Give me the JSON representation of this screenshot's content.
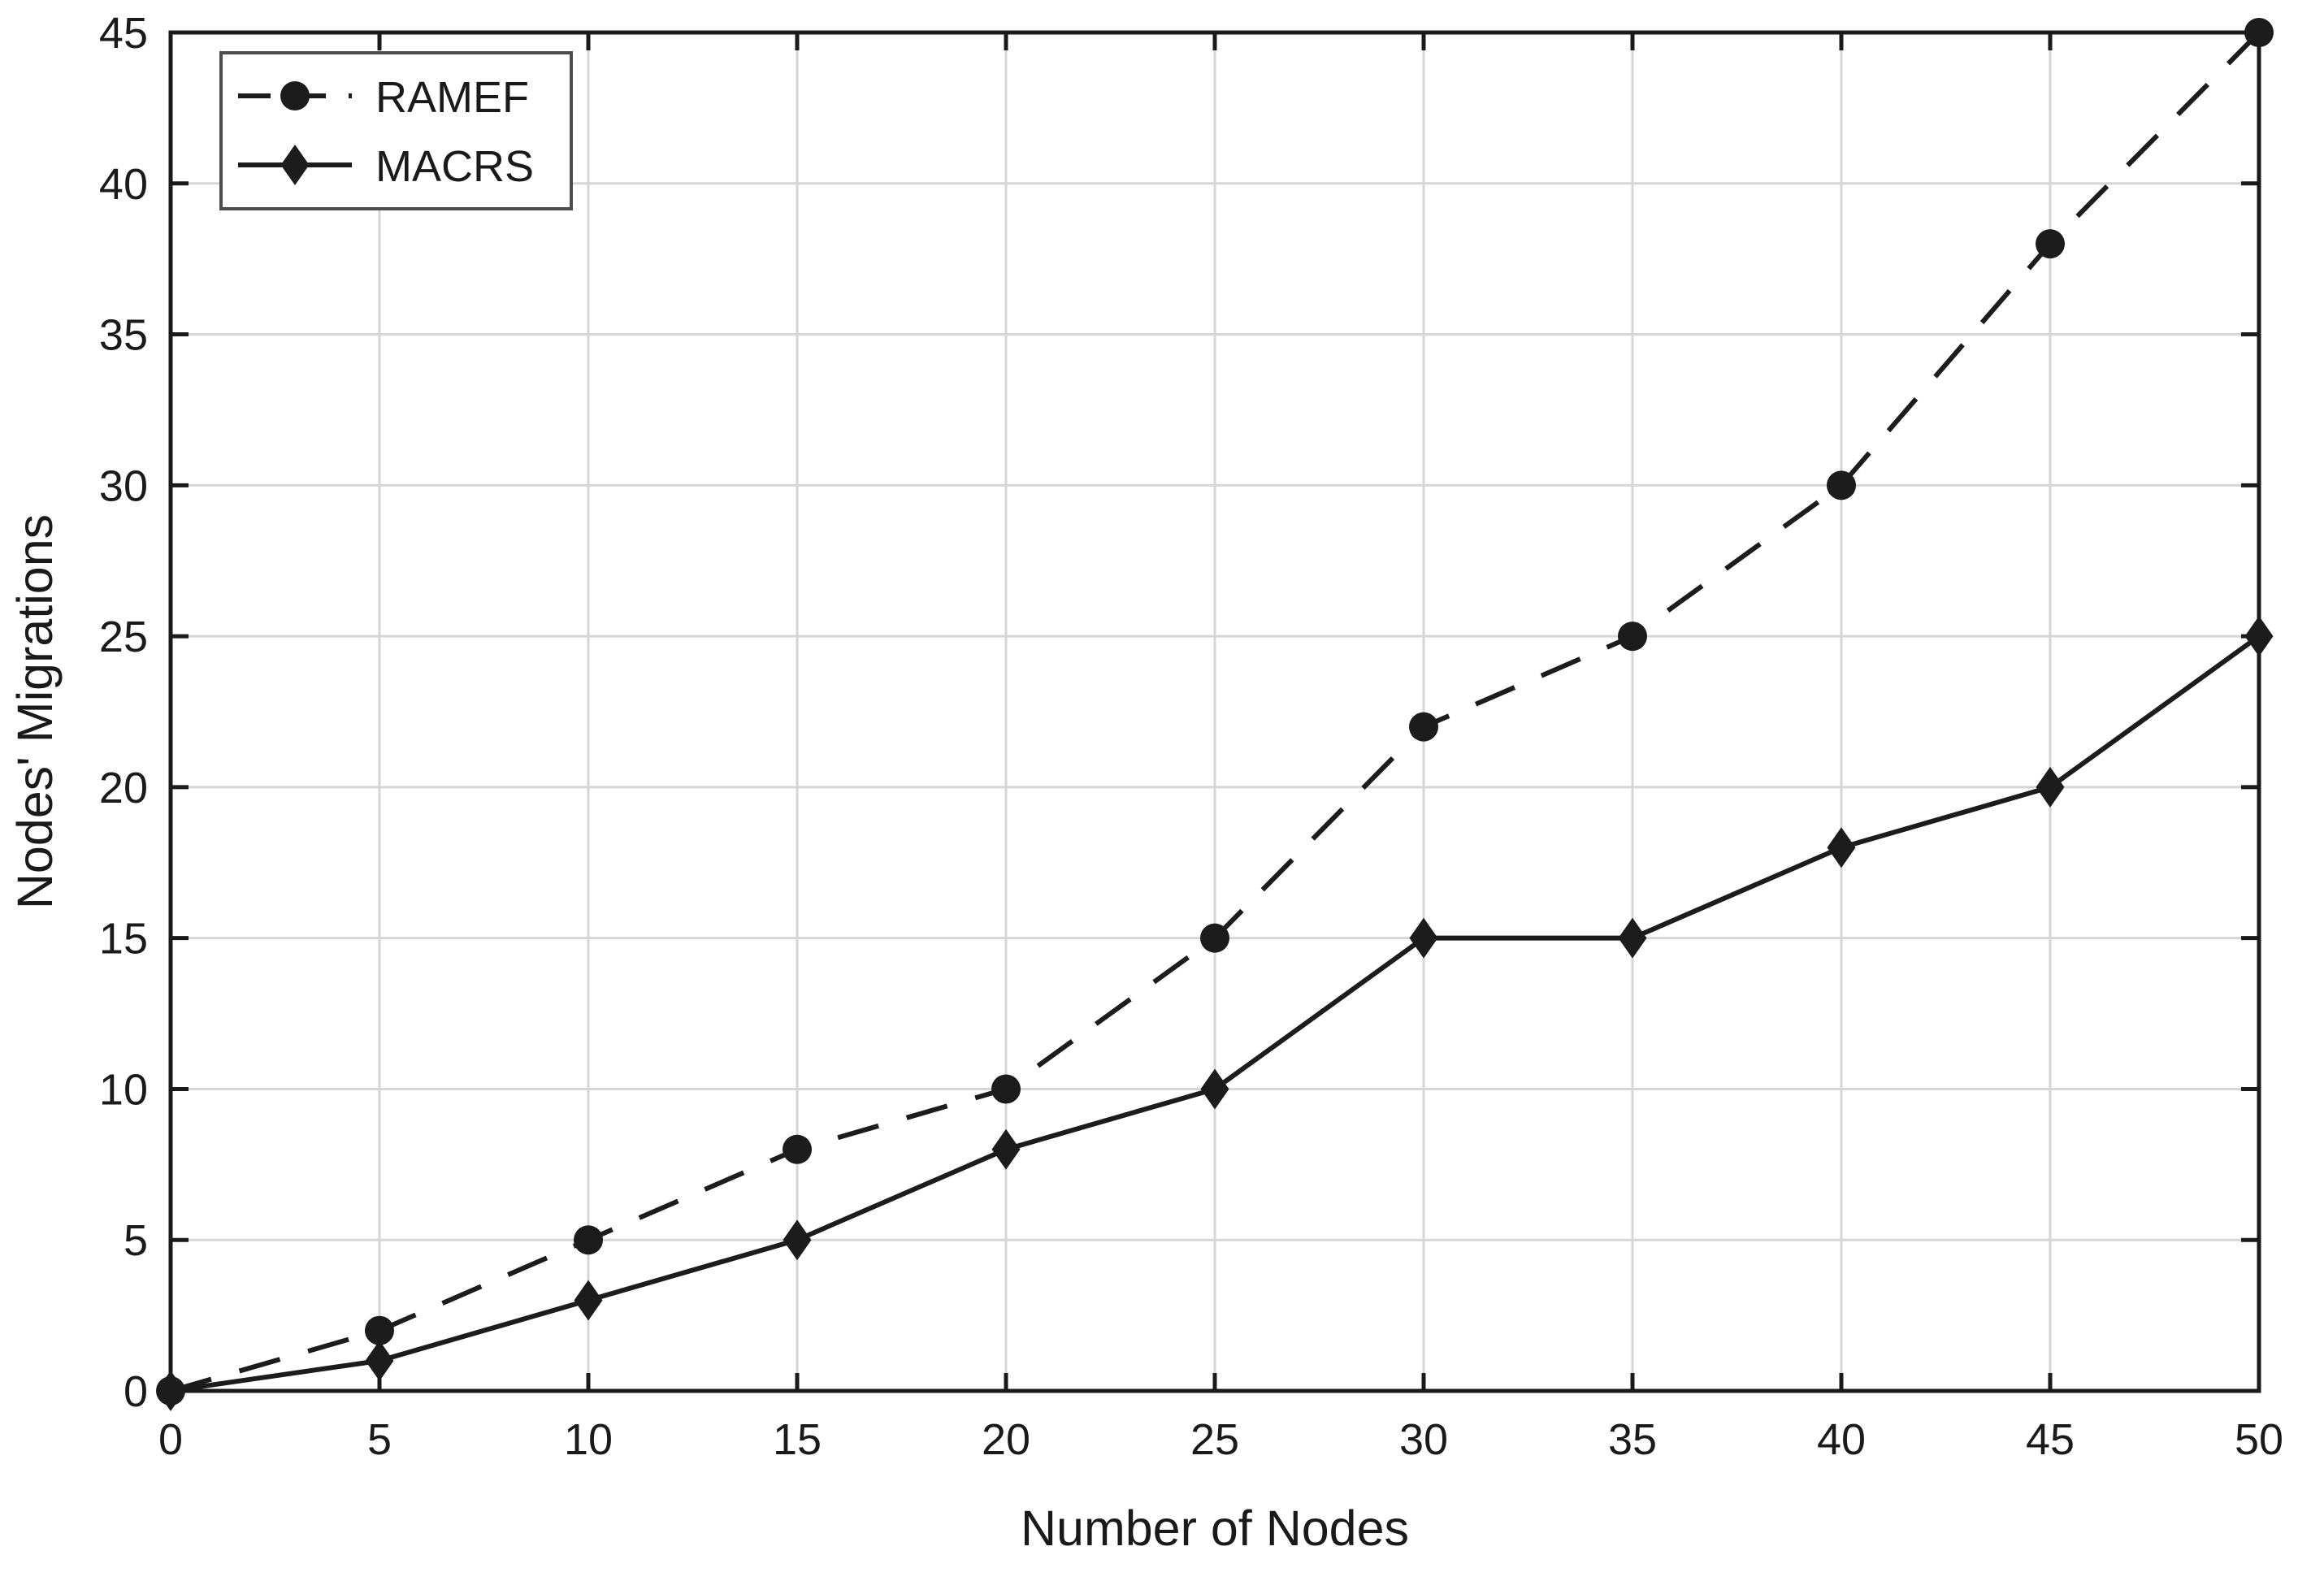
{
  "chart_data": {
    "type": "line",
    "title": "",
    "xlabel": "Number of Nodes",
    "ylabel": "Nodes' Migrations",
    "x": [
      0,
      5,
      10,
      15,
      20,
      25,
      30,
      35,
      40,
      45,
      50
    ],
    "series": [
      {
        "name": "RAMEF",
        "values": [
          0,
          2,
          5,
          8,
          10,
          15,
          22,
          25,
          30,
          38,
          45
        ],
        "line_style": "dashed",
        "marker": "circle"
      },
      {
        "name": "MACRS",
        "values": [
          0,
          1,
          3,
          5,
          8,
          10,
          15,
          15,
          18,
          20,
          25
        ],
        "line_style": "solid",
        "marker": "diamond"
      }
    ],
    "xlim": [
      0,
      50
    ],
    "ylim": [
      0,
      45
    ],
    "xticks": [
      0,
      5,
      10,
      15,
      20,
      25,
      30,
      35,
      40,
      45,
      50
    ],
    "yticks": [
      0,
      5,
      10,
      15,
      20,
      25,
      30,
      35,
      40,
      45
    ],
    "grid": true,
    "legend_position": "top-left",
    "colors": {
      "line": "#1c1c1c",
      "grid": "#d6d6d6",
      "axis": "#1a1a1a",
      "legend_border": "#4d4d4d",
      "background": "#ffffff"
    }
  }
}
